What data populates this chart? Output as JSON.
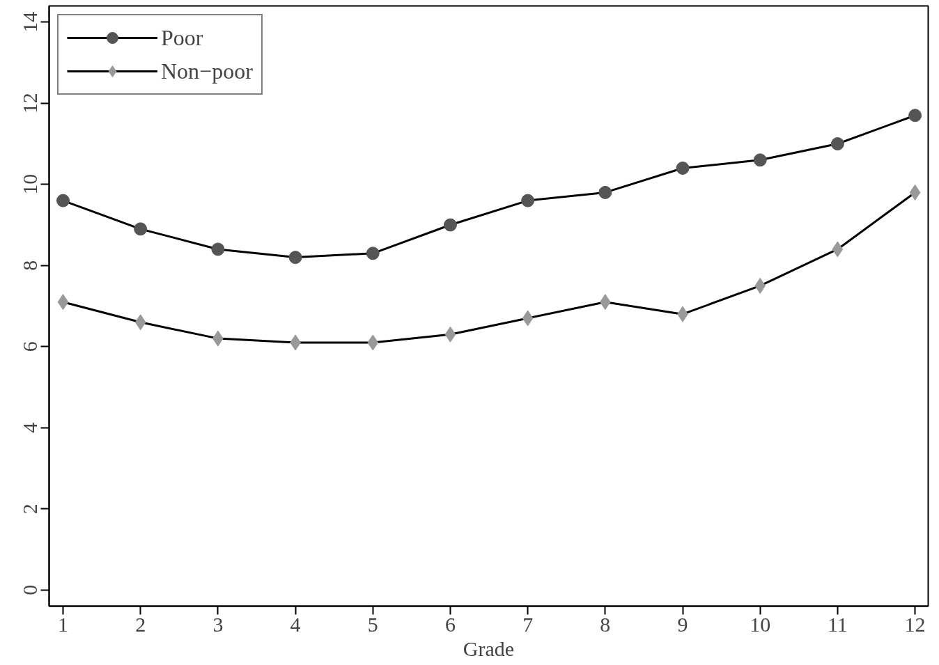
{
  "chart_data": {
    "type": "line",
    "xlabel": "Grade",
    "x": [
      1,
      2,
      3,
      4,
      5,
      6,
      7,
      8,
      9,
      10,
      11,
      12
    ],
    "series": [
      {
        "name": "Poor",
        "color": "#555555",
        "marker": "circle",
        "values": [
          9.6,
          8.9,
          8.4,
          8.2,
          8.3,
          9.0,
          9.6,
          9.8,
          10.4,
          10.6,
          11.0,
          11.7
        ]
      },
      {
        "name": "Non−poor",
        "color": "#999999",
        "marker": "diamond",
        "values": [
          7.1,
          6.6,
          6.2,
          6.1,
          6.1,
          6.3,
          6.7,
          7.1,
          6.8,
          7.5,
          8.4,
          9.8
        ]
      }
    ],
    "xlim": [
      0.82,
      12.17
    ],
    "ylim": [
      -0.4,
      14.4
    ],
    "xticks": [
      1,
      2,
      3,
      4,
      5,
      6,
      7,
      8,
      9,
      10,
      11,
      12
    ],
    "yticks": [
      0,
      2,
      4,
      6,
      8,
      10,
      12,
      14
    ],
    "grid": false,
    "legend": "top left",
    "line_style": "solid"
  }
}
